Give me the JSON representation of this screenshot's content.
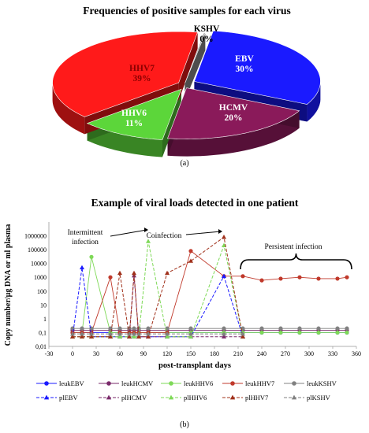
{
  "chart_data": [
    {
      "type": "pie",
      "title": "Frequencies of positive samples for each virus",
      "slices": [
        {
          "label": "EBV",
          "value": 30,
          "value_label": "30%",
          "color": "#1a1aff"
        },
        {
          "label": "HCMV",
          "value": 20,
          "value_label": "20%",
          "color": "#8a1a5a"
        },
        {
          "label": "HHV6",
          "value": 11,
          "value_label": "11%",
          "color": "#5cd63a"
        },
        {
          "label": "HHV7",
          "value": 39,
          "value_label": "39%",
          "color": "#ff1a1a"
        },
        {
          "label": "KSHV",
          "value": 0,
          "value_label": "0%",
          "color": "#999999"
        }
      ],
      "caption": "(a)"
    },
    {
      "type": "line",
      "title": "Example of viral loads detected in one patient",
      "xlabel": "post-transplant days",
      "ylabel": "Copy number/µg DNA or ml plasma",
      "x_ticks": [
        -30,
        0,
        30,
        60,
        90,
        120,
        150,
        180,
        210,
        240,
        270,
        300,
        330,
        360
      ],
      "y_ticks": [
        {
          "label": "0,01",
          "value": 0.01
        },
        {
          "label": "0,1",
          "value": 0.1
        },
        {
          "label": "1",
          "value": 1
        },
        {
          "label": "10",
          "value": 10
        },
        {
          "label": "100",
          "value": 100
        },
        {
          "label": "1000",
          "value": 1000
        },
        {
          "label": "10000",
          "value": 10000
        },
        {
          "label": "100000",
          "value": 100000
        },
        {
          "label": "1000000",
          "value": 1000000
        }
      ],
      "y_scale": "log",
      "xlim": [
        -30,
        360
      ],
      "ylim": [
        0.01,
        10000000
      ],
      "annotations": {
        "intermittent_line1": "Intermittent",
        "intermittent_line2": "infection",
        "coinfection": "Coinfection",
        "persistent": "Persistent infection"
      },
      "series": [
        {
          "name": "leukEBV",
          "color": "#1a1aff",
          "dash": false,
          "marker": "circle",
          "x": [
            0,
            12,
            24,
            48,
            60,
            72,
            78,
            84,
            96,
            120,
            150,
            192,
            216,
            240,
            264,
            288,
            312,
            336,
            348
          ],
          "y": [
            0.1,
            0.1,
            0.1,
            0.1,
            0.1,
            0.1,
            0.1,
            0.1,
            0.1,
            0.1,
            0.1,
            0.1,
            0.1,
            0.1,
            0.1,
            0.1,
            0.1,
            0.1,
            0.1
          ]
        },
        {
          "name": "leukHCMV",
          "color": "#7a2a6a",
          "dash": false,
          "marker": "circle",
          "x": [
            0,
            12,
            24,
            48,
            60,
            72,
            78,
            84,
            96,
            120,
            150,
            192,
            216,
            240,
            264,
            288,
            312,
            336,
            348
          ],
          "y": [
            0.15,
            0.15,
            0.15,
            0.15,
            0.15,
            0.15,
            0.15,
            0.15,
            0.15,
            0.15,
            0.15,
            0.15,
            0.15,
            0.15,
            0.15,
            0.15,
            0.15,
            0.15,
            0.15
          ]
        },
        {
          "name": "leukHHV6",
          "color": "#7ed957",
          "dash": false,
          "marker": "circle",
          "x": [
            0,
            12,
            24,
            48,
            60,
            72,
            78,
            84,
            96,
            120,
            150,
            192,
            216,
            240,
            264,
            288,
            312,
            336,
            348
          ],
          "y": [
            0.1,
            0.1,
            30000,
            0.1,
            0.1,
            0.1,
            0.1,
            0.1,
            0.1,
            0.1,
            0.1,
            0.1,
            0.1,
            0.1,
            0.1,
            0.1,
            0.1,
            0.1,
            0.1
          ]
        },
        {
          "name": "leukHHV7",
          "color": "#c0392b",
          "dash": false,
          "marker": "circle",
          "x": [
            0,
            12,
            24,
            48,
            60,
            72,
            78,
            84,
            96,
            120,
            150,
            192,
            216,
            240,
            264,
            288,
            312,
            336,
            348
          ],
          "y": [
            0.1,
            0.1,
            0.1,
            1000,
            0.1,
            0.1,
            0.1,
            0.1,
            0.1,
            0.1,
            80000,
            1200,
            1200,
            600,
            800,
            1000,
            800,
            800,
            1000
          ]
        },
        {
          "name": "leukKSHV",
          "color": "#808080",
          "dash": false,
          "marker": "circle",
          "x": [
            0,
            12,
            24,
            48,
            60,
            72,
            78,
            84,
            96,
            120,
            150,
            192,
            216,
            240,
            264,
            288,
            312,
            336,
            348
          ],
          "y": [
            0.2,
            0.2,
            0.2,
            0.2,
            0.2,
            0.2,
            0.2,
            0.2,
            0.2,
            0.2,
            0.2,
            0.2,
            0.2,
            0.2,
            0.2,
            0.2,
            0.2,
            0.2,
            0.2
          ]
        },
        {
          "name": "plEBV",
          "color": "#1a1aff",
          "dash": true,
          "marker": "triangle",
          "x": [
            0,
            12,
            24,
            48,
            60,
            72,
            78,
            84,
            96,
            120,
            150,
            192,
            216
          ],
          "y": [
            0.05,
            5000,
            0.05,
            0.05,
            0.05,
            0.05,
            0.05,
            0.05,
            0.05,
            0.05,
            0.05,
            1200,
            0.05
          ]
        },
        {
          "name": "plHCMV",
          "color": "#7a2a6a",
          "dash": true,
          "marker": "triangle",
          "x": [
            0,
            12,
            24,
            48,
            60,
            72,
            78,
            84,
            96,
            120,
            150,
            192,
            216
          ],
          "y": [
            0.05,
            0.05,
            0.05,
            0.05,
            0.05,
            0.05,
            1300,
            0.05,
            0.05,
            0.05,
            0.05,
            0.05,
            0.05
          ]
        },
        {
          "name": "plHHV6",
          "color": "#7ed957",
          "dash": true,
          "marker": "triangle",
          "x": [
            0,
            12,
            24,
            48,
            60,
            72,
            78,
            84,
            96,
            120,
            150,
            192,
            216
          ],
          "y": [
            0.05,
            0.05,
            0.05,
            0.05,
            0.05,
            0.05,
            0.05,
            0.05,
            400000,
            0.05,
            0.05,
            200000,
            0.05
          ]
        },
        {
          "name": "plHHV7",
          "color": "#a0301a",
          "dash": true,
          "marker": "triangle",
          "x": [
            0,
            12,
            24,
            48,
            60,
            72,
            78,
            84,
            96,
            120,
            150,
            192,
            216
          ],
          "y": [
            0.05,
            0.05,
            0.05,
            0.05,
            2000,
            0.05,
            2000,
            0.05,
            0.05,
            2000,
            15000,
            800000,
            0.05
          ]
        },
        {
          "name": "plKSHV",
          "color": "#808080",
          "dash": true,
          "marker": "triangle",
          "x": [
            0,
            12,
            24,
            48,
            60,
            72,
            78,
            84,
            96,
            120,
            150,
            192,
            216
          ],
          "y": [
            0.08,
            0.08,
            0.08,
            0.08,
            0.08,
            0.08,
            0.08,
            0.08,
            0.08,
            0.08,
            0.08,
            0.08,
            0.08
          ]
        }
      ],
      "legend_placement": "bottom",
      "caption": "(b)"
    }
  ]
}
